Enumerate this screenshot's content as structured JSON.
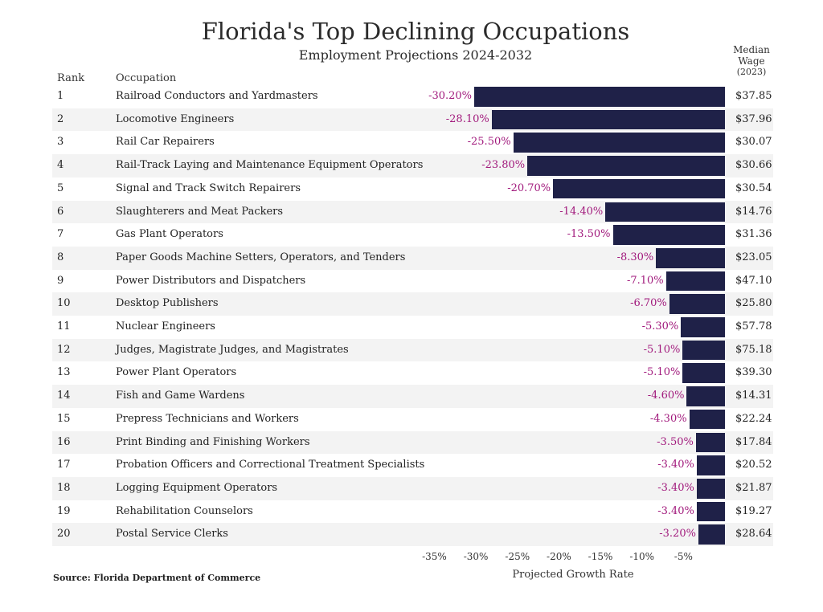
{
  "chart_data": {
    "type": "bar",
    "title": "Florida's Top Declining Occupations",
    "subtitle": "Employment Projections 2024-2032",
    "xlabel": "Projected Growth Rate",
    "xlim": [
      -35,
      0
    ],
    "xticks": [
      "-35%",
      "-30%",
      "-25%",
      "-20%",
      "-15%",
      "-10%",
      "-5%"
    ],
    "xtick_values": [
      -35,
      -30,
      -25,
      -20,
      -15,
      -10,
      -5
    ],
    "headers": {
      "rank": "Rank",
      "occupation": "Occupation",
      "wage": [
        "Median",
        "Wage",
        "(2023)"
      ]
    },
    "source": "Source: Florida Department of Commerce",
    "bar_color": "#1f2148",
    "label_color": "#a1197c",
    "rows": [
      {
        "rank": "1",
        "occupation": "Railroad Conductors and Yardmasters",
        "value": -30.2,
        "label": "-30.20%",
        "wage": "$37.85"
      },
      {
        "rank": "2",
        "occupation": "Locomotive Engineers",
        "value": -28.1,
        "label": "-28.10%",
        "wage": "$37.96"
      },
      {
        "rank": "3",
        "occupation": "Rail Car Repairers",
        "value": -25.5,
        "label": "-25.50%",
        "wage": "$30.07"
      },
      {
        "rank": "4",
        "occupation": "Rail-Track Laying and Maintenance Equipment Operators",
        "value": -23.8,
        "label": "-23.80%",
        "wage": "$30.66"
      },
      {
        "rank": "5",
        "occupation": "Signal and Track Switch Repairers",
        "value": -20.7,
        "label": "-20.70%",
        "wage": "$30.54"
      },
      {
        "rank": "6",
        "occupation": "Slaughterers and Meat Packers",
        "value": -14.4,
        "label": "-14.40%",
        "wage": "$14.76"
      },
      {
        "rank": "7",
        "occupation": "Gas Plant Operators",
        "value": -13.5,
        "label": "-13.50%",
        "wage": "$31.36"
      },
      {
        "rank": "8",
        "occupation": "Paper Goods Machine Setters, Operators, and Tenders",
        "value": -8.3,
        "label": "-8.30%",
        "wage": "$23.05"
      },
      {
        "rank": "9",
        "occupation": "Power Distributors and Dispatchers",
        "value": -7.1,
        "label": "-7.10%",
        "wage": "$47.10"
      },
      {
        "rank": "10",
        "occupation": "Desktop Publishers",
        "value": -6.7,
        "label": "-6.70%",
        "wage": "$25.80"
      },
      {
        "rank": "11",
        "occupation": "Nuclear Engineers",
        "value": -5.3,
        "label": "-5.30%",
        "wage": "$57.78"
      },
      {
        "rank": "12",
        "occupation": "Judges, Magistrate Judges, and Magistrates",
        "value": -5.1,
        "label": "-5.10%",
        "wage": "$75.18"
      },
      {
        "rank": "13",
        "occupation": "Power Plant Operators",
        "value": -5.1,
        "label": "-5.10%",
        "wage": "$39.30"
      },
      {
        "rank": "14",
        "occupation": "Fish and Game Wardens",
        "value": -4.6,
        "label": "-4.60%",
        "wage": "$14.31"
      },
      {
        "rank": "15",
        "occupation": "Prepress Technicians and Workers",
        "value": -4.3,
        "label": "-4.30%",
        "wage": "$22.24"
      },
      {
        "rank": "16",
        "occupation": "Print Binding and Finishing Workers",
        "value": -3.5,
        "label": "-3.50%",
        "wage": "$17.84"
      },
      {
        "rank": "17",
        "occupation": "Probation Officers and Correctional Treatment Specialists",
        "value": -3.4,
        "label": "-3.40%",
        "wage": "$20.52"
      },
      {
        "rank": "18",
        "occupation": "Logging Equipment Operators",
        "value": -3.4,
        "label": "-3.40%",
        "wage": "$21.87"
      },
      {
        "rank": "19",
        "occupation": "Rehabilitation Counselors",
        "value": -3.4,
        "label": "-3.40%",
        "wage": "$19.27"
      },
      {
        "rank": "20",
        "occupation": "Postal Service Clerks",
        "value": -3.2,
        "label": "-3.20%",
        "wage": "$28.64"
      }
    ]
  }
}
